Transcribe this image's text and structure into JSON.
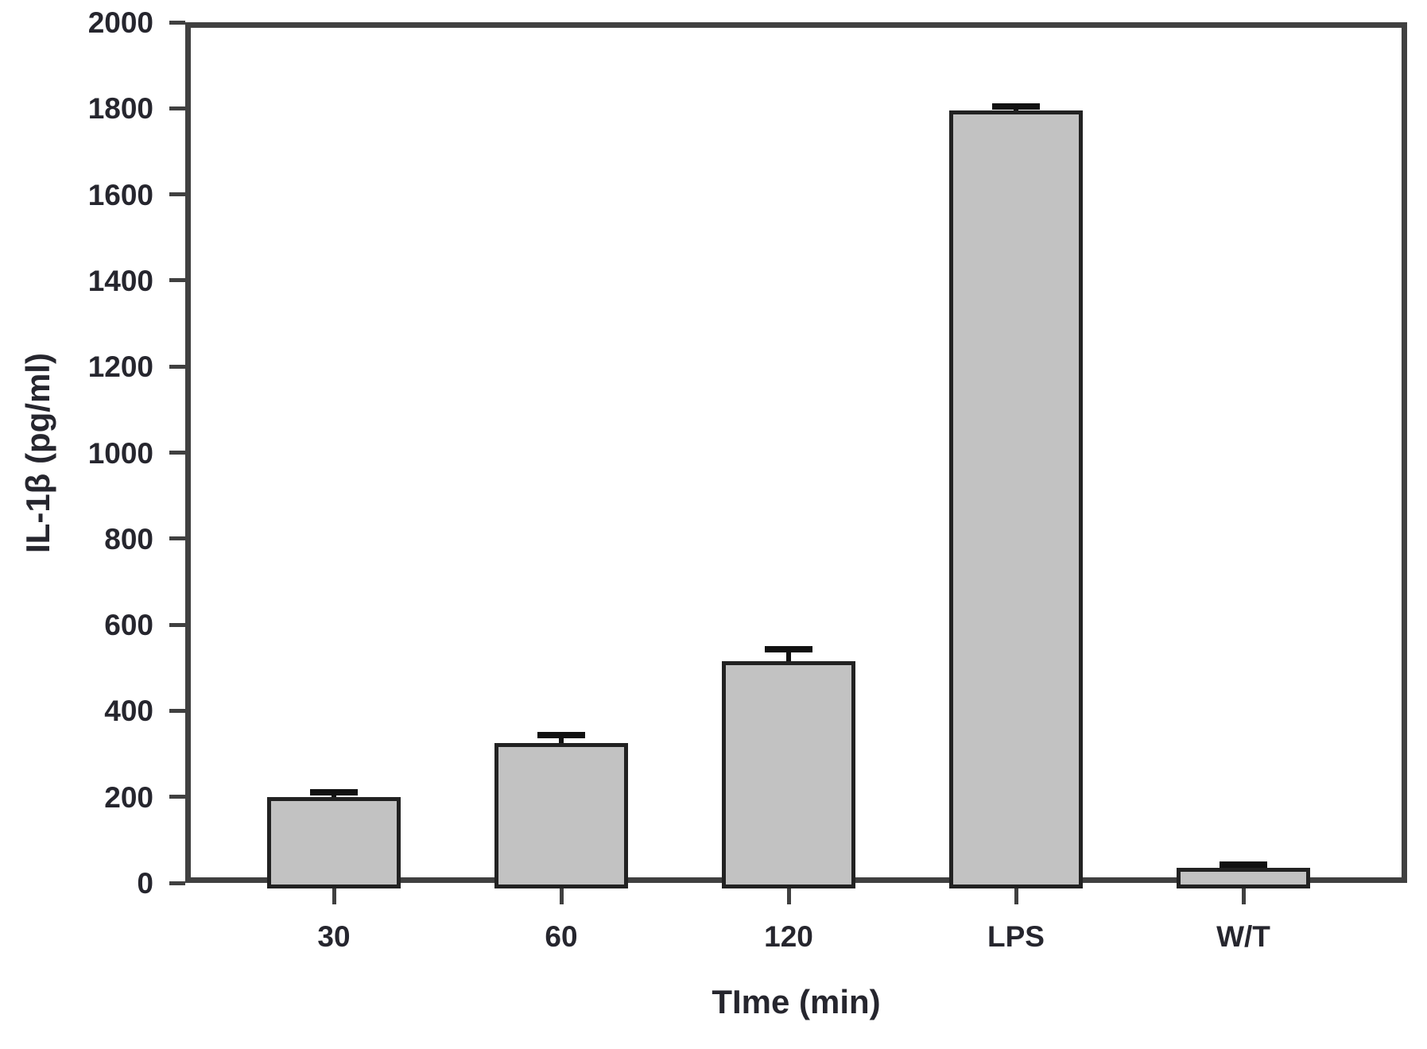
{
  "chart_data": {
    "type": "bar",
    "title": "",
    "xlabel": "TIme (min)",
    "ylabel": "IL-1β (pg/ml)",
    "categories": [
      "30",
      "60",
      "120",
      "LPS",
      "W/T"
    ],
    "values": [
      200,
      325,
      515,
      1795,
      35
    ],
    "errors": [
      10,
      18,
      28,
      10,
      8
    ],
    "error_direction": "up",
    "ylim": [
      0,
      2000
    ],
    "ytick_step": 200,
    "grid": "off",
    "legend": "none",
    "frame": "full-box",
    "bar_fill": "#c2c2c2",
    "bar_border": "#222222",
    "error_color": "#111111",
    "frame_color": "#404040",
    "text_color": "#26262e",
    "background": "#ffffff"
  }
}
